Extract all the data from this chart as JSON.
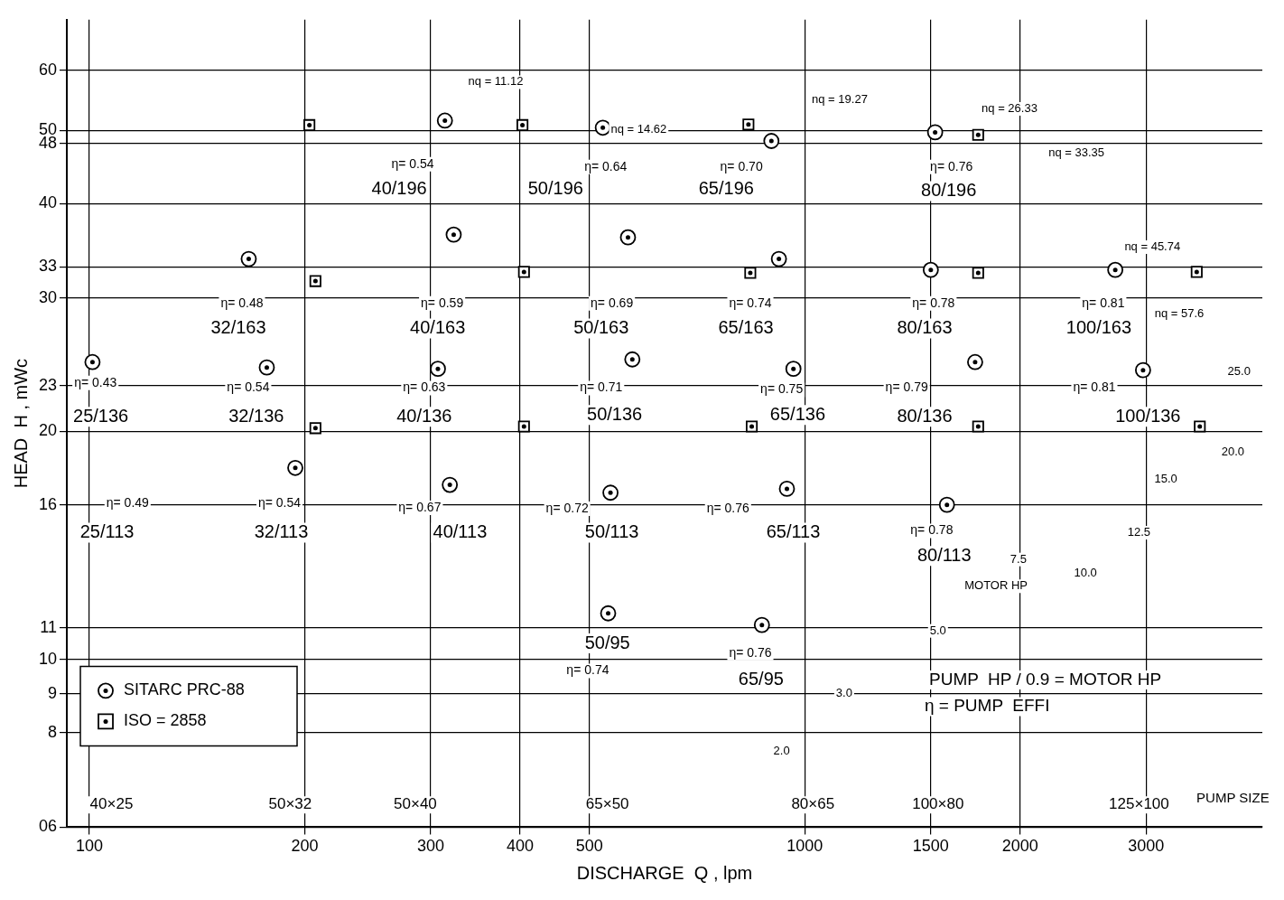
{
  "chart_data": {
    "type": "scatter",
    "xlabel": "DISCHARGE  Q , lpm",
    "ylabel": "HEAD  H , mWc",
    "log": "xy",
    "grid": true,
    "legend": "bottom left",
    "xlim": [
      93,
      4360
    ],
    "xticks": [
      100,
      200,
      300,
      400,
      500,
      1000,
      1500,
      2000,
      3000
    ],
    "ylim": [
      6,
      70
    ],
    "yticks": [
      {
        "value": 6,
        "label": "06"
      },
      8,
      9,
      10,
      11,
      16,
      20,
      23,
      30,
      33,
      40,
      48,
      50,
      60
    ],
    "series": [
      {
        "name": "SITARC PRC-88",
        "marker": "circle",
        "color": "#000000",
        "x": [
          314,
          522,
          898,
          1521,
          323,
          566,
          920,
          1500,
          2716,
          167,
          101,
          177,
          307,
          574,
          964,
          1730,
          2970,
          194,
          319,
          535,
          944,
          1580,
          531,
          871
        ],
        "values": [
          51.5,
          50.4,
          48.4,
          49.7,
          36.4,
          36.1,
          33.8,
          32.7,
          32.7,
          33.8,
          24.7,
          24.3,
          24.2,
          24.9,
          24.2,
          24.7,
          24.1,
          17.9,
          17.0,
          16.6,
          16.8,
          16.0,
          11.5,
          11.1
        ]
      },
      {
        "name": "ISO = 2858",
        "marker": "square",
        "color": "#000000",
        "x": [
          203,
          403,
          834,
          1747,
          207,
          405,
          839,
          1747,
          3530,
          207,
          405,
          843,
          1747,
          3565
        ],
        "values": [
          50.8,
          50.8,
          50.9,
          49.3,
          31.6,
          32.5,
          32.4,
          32.4,
          32.5,
          20.2,
          20.3,
          20.3,
          20.3,
          20.3
        ]
      }
    ],
    "annotations": [
      "η= 0.54",
      "40/196",
      "η= 0.64",
      "50/196",
      "η= 0.70",
      "65/196",
      "η= 0.76",
      "80/196",
      "η= 0.48",
      "32/163",
      "η= 0.59",
      "40/163",
      "η= 0.69",
      "50/163",
      "η= 0.74",
      "65/163",
      "η= 0.78",
      "80/163",
      "η= 0.81",
      "100/163",
      "η= 0.43",
      "25/136",
      "η= 0.54",
      "32/136",
      "η= 0.63",
      "40/136",
      "η= 0.71",
      "50/136",
      "η= 0.75",
      "65/136",
      "η= 0.79",
      "80/136",
      "η= 0.81",
      "100/136",
      "η= 0.49",
      "25/113",
      "η= 0.54",
      "32/113",
      "η= 0.67",
      "40/113",
      "η= 0.72",
      "50/113",
      "η= 0.76",
      "65/113",
      "η= 0.78",
      "80/113",
      "50/95",
      "η= 0.74",
      "η= 0.76",
      "65/95",
      "nq = 11.12",
      "nq = 14.62",
      "nq = 19.27",
      "nq = 26.33",
      "nq = 33.35",
      "nq = 45.74",
      "nq = 57.6",
      "2.0",
      "3.0",
      "5.0",
      "7.5",
      "10.0",
      "12.5",
      "15.0",
      "20.0",
      "25.0",
      "MOTOR HP",
      "40×25",
      "50×32",
      "50×40",
      "65×50",
      "80×65",
      "100×80",
      "125×100",
      "PUMP SIZE",
      "PUMP  HP / 0.9 = MOTOR HP",
      "η = PUMP  EFFI"
    ]
  }
}
